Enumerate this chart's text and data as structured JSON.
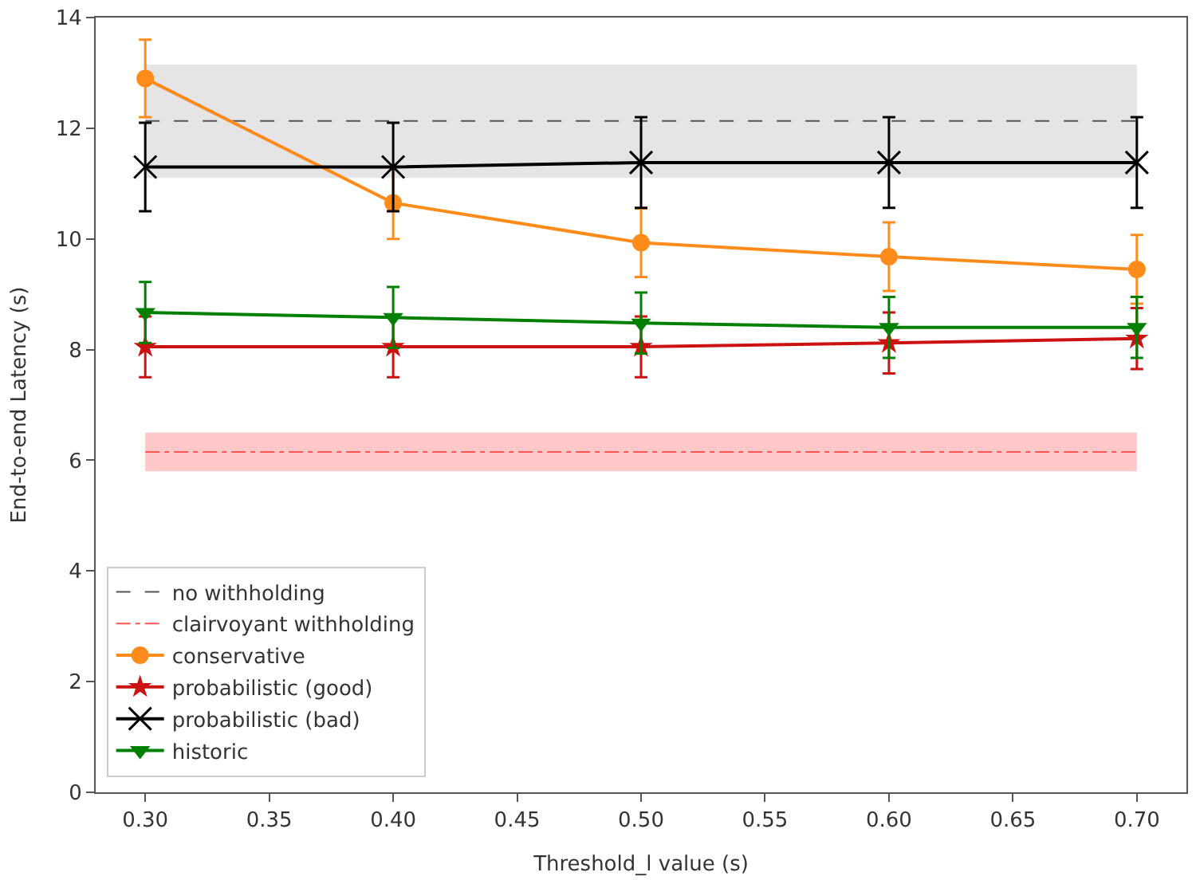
{
  "chart_data": {
    "type": "line",
    "xlabel": "Threshold_l value (s)",
    "ylabel": "End-to-end Latency (s)",
    "x": [
      0.3,
      0.4,
      0.5,
      0.6,
      0.7
    ],
    "xlim": [
      0.28,
      0.72
    ],
    "xticks": [
      {
        "value": 0.3,
        "label": "0.30"
      },
      {
        "value": 0.35,
        "label": "0.35"
      },
      {
        "value": 0.4,
        "label": "0.40"
      },
      {
        "value": 0.45,
        "label": "0.45"
      },
      {
        "value": 0.5,
        "label": "0.50"
      },
      {
        "value": 0.55,
        "label": "0.55"
      },
      {
        "value": 0.6,
        "label": "0.60"
      },
      {
        "value": 0.65,
        "label": "0.65"
      },
      {
        "value": 0.7,
        "label": "0.70"
      }
    ],
    "ylim": [
      0,
      14
    ],
    "yticks": [
      0,
      2,
      4,
      6,
      8,
      10,
      12,
      14
    ],
    "legend": "bottom left",
    "ref_lines": [
      {
        "axis": "y",
        "value": 12.13,
        "label": "no withholding",
        "color": "#555555",
        "line_style": "dashed"
      },
      {
        "axis": "y",
        "value": 6.15,
        "label": "clairvoyant withholding",
        "color": "#ff5555",
        "line_style": "dashdot"
      }
    ],
    "bands": [
      {
        "axis": "y",
        "from": 11.1,
        "to": 13.15,
        "color": "#e5e5e5"
      },
      {
        "axis": "y",
        "from": 5.8,
        "to": 6.5,
        "color": "#ffc8c8"
      }
    ],
    "series": [
      {
        "name": "conservative",
        "color": "#ff8c1a",
        "marker": "circle",
        "values": [
          12.9,
          10.65,
          9.93,
          9.68,
          9.45
        ],
        "errors": [
          0.7,
          0.65,
          0.62,
          0.62,
          0.62
        ]
      },
      {
        "name": "probabilistic (good)",
        "color": "#cc1111",
        "marker": "star",
        "values": [
          8.05,
          8.05,
          8.05,
          8.12,
          8.2
        ],
        "errors": [
          0.55,
          0.55,
          0.55,
          0.55,
          0.55
        ]
      },
      {
        "name": "probabilistic (bad)",
        "color": "#000000",
        "marker": "cross",
        "values": [
          11.3,
          11.3,
          11.38,
          11.38,
          11.38
        ],
        "errors": [
          0.8,
          0.8,
          0.82,
          0.82,
          0.82
        ]
      },
      {
        "name": "historic",
        "color": "#008000",
        "marker": "triangle",
        "values": [
          8.67,
          8.58,
          8.48,
          8.4,
          8.4
        ],
        "errors": [
          0.55,
          0.55,
          0.55,
          0.55,
          0.55
        ]
      }
    ]
  }
}
